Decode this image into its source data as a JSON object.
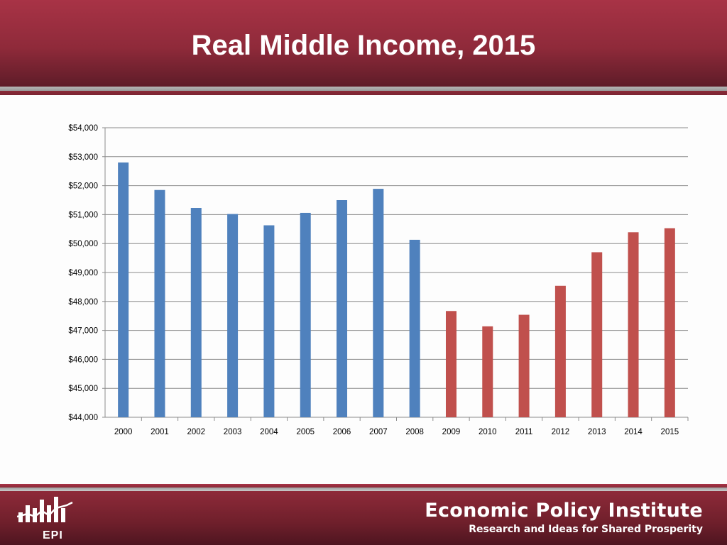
{
  "slide": {
    "title": "Real Middle Income, 2015"
  },
  "footer": {
    "org_name": "Economic Policy Institute",
    "tagline": "Research and Ideas for Shared Prosperity",
    "logo_text": "EPI",
    "logo_icon": "epi-bar-chart-logo"
  },
  "colors": {
    "header": "#a83346",
    "series_pre_2009": "#4f81bd",
    "series_2009_on": "#c0504d",
    "grid": "#8c8c8c"
  },
  "chart_data": {
    "type": "bar",
    "title": "",
    "xlabel": "",
    "ylabel": "",
    "categories": [
      "2000",
      "2001",
      "2002",
      "2003",
      "2004",
      "2005",
      "2006",
      "2007",
      "2008",
      "2009",
      "2010",
      "2011",
      "2012",
      "2013",
      "2014",
      "2015"
    ],
    "values": [
      52800,
      51850,
      51230,
      51020,
      50630,
      51060,
      51500,
      51890,
      50130,
      47670,
      47140,
      47540,
      48540,
      49700,
      50390,
      50530
    ],
    "bar_colors": [
      "#4f81bd",
      "#4f81bd",
      "#4f81bd",
      "#4f81bd",
      "#4f81bd",
      "#4f81bd",
      "#4f81bd",
      "#4f81bd",
      "#4f81bd",
      "#c0504d",
      "#c0504d",
      "#c0504d",
      "#c0504d",
      "#c0504d",
      "#c0504d",
      "#c0504d"
    ],
    "ylim": [
      44000,
      54000
    ],
    "y_ticks": [
      44000,
      45000,
      46000,
      47000,
      48000,
      49000,
      50000,
      51000,
      52000,
      53000,
      54000
    ],
    "y_tick_labels": [
      "$44,000",
      "$45,000",
      "$46,000",
      "$47,000",
      "$48,000",
      "$49,000",
      "$50,000",
      "$51,000",
      "$52,000",
      "$53,000",
      "$54,000"
    ],
    "grid": true,
    "legend": "none"
  }
}
